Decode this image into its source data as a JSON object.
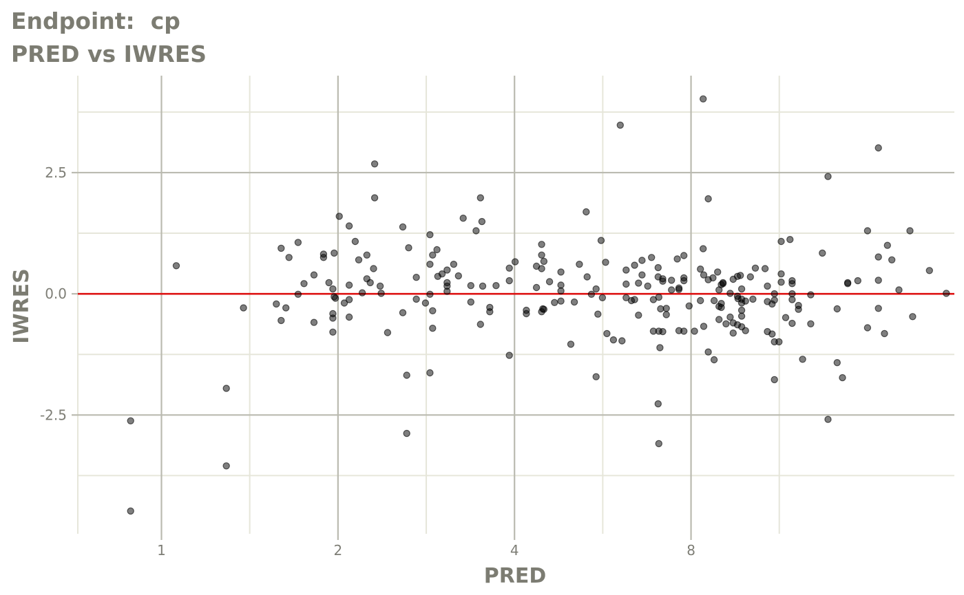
{
  "chart_data": {
    "type": "scatter",
    "title": "Endpoint:  cp",
    "subtitle": "PRED vs IWRES",
    "xlabel": "PRED",
    "ylabel": "IWRES",
    "x_scale": "log2",
    "xlim": [
      0.72,
      22.5
    ],
    "ylim": [
      -4.95,
      4.5
    ],
    "x_ticks": [
      1,
      2,
      4,
      8
    ],
    "x_tick_labels": [
      "1",
      "2",
      "4",
      "8"
    ],
    "y_ticks": [
      -2.5,
      0,
      2.5
    ],
    "y_tick_labels": [
      "-2.5",
      "0.0",
      "2.5"
    ],
    "reference_line": {
      "y": 0,
      "color": "#dd1111"
    },
    "grid": true,
    "colors": {
      "point": "#000000",
      "grid_major": "#babab0",
      "grid_minor": "#e6e6da"
    },
    "points": [
      [
        0.886,
        -4.48
      ],
      [
        0.886,
        -2.62
      ],
      [
        1.06,
        0.58
      ],
      [
        1.29,
        -1.95
      ],
      [
        1.29,
        -3.55
      ],
      [
        1.38,
        -0.29
      ],
      [
        1.57,
        -0.21
      ],
      [
        1.6,
        0.94
      ],
      [
        1.6,
        -0.55
      ],
      [
        1.63,
        -0.29
      ],
      [
        1.65,
        0.75
      ],
      [
        1.71,
        1.06
      ],
      [
        1.71,
        -0.01
      ],
      [
        1.75,
        0.21
      ],
      [
        1.82,
        0.39
      ],
      [
        1.82,
        -0.59
      ],
      [
        1.89,
        0.82
      ],
      [
        1.89,
        0.75
      ],
      [
        1.93,
        0.23
      ],
      [
        1.96,
        0.1
      ],
      [
        1.96,
        -0.41
      ],
      [
        1.96,
        -0.5
      ],
      [
        1.96,
        -0.79
      ],
      [
        1.97,
        -0.06
      ],
      [
        1.98,
        -0.09
      ],
      [
        1.97,
        0.84
      ],
      [
        2.01,
        1.6
      ],
      [
        2.05,
        -0.19
      ],
      [
        2.09,
        1.4
      ],
      [
        2.09,
        0.18
      ],
      [
        2.09,
        -0.12
      ],
      [
        2.09,
        -0.48
      ],
      [
        2.14,
        1.08
      ],
      [
        2.17,
        0.7
      ],
      [
        2.2,
        0.02
      ],
      [
        2.24,
        0.8
      ],
      [
        2.24,
        0.31
      ],
      [
        2.27,
        0.23
      ],
      [
        2.3,
        0.52
      ],
      [
        2.31,
        2.68
      ],
      [
        2.31,
        1.98
      ],
      [
        2.36,
        0.16
      ],
      [
        2.37,
        0.01
      ],
      [
        2.43,
        -0.8
      ],
      [
        2.58,
        1.38
      ],
      [
        2.58,
        -0.39
      ],
      [
        2.62,
        -1.68
      ],
      [
        2.62,
        -2.88
      ],
      [
        2.64,
        0.95
      ],
      [
        2.72,
        0.34
      ],
      [
        2.72,
        -0.11
      ],
      [
        2.82,
        -0.19
      ],
      [
        2.87,
        1.22
      ],
      [
        2.87,
        0.61
      ],
      [
        2.87,
        -0.01
      ],
      [
        2.9,
        0.8
      ],
      [
        2.9,
        -0.35
      ],
      [
        2.9,
        -0.71
      ],
      [
        2.87,
        -1.63
      ],
      [
        2.95,
        0.91
      ],
      [
        2.96,
        0.36
      ],
      [
        3.01,
        0.41
      ],
      [
        3.07,
        0.49
      ],
      [
        3.07,
        0.23
      ],
      [
        3.07,
        0.16
      ],
      [
        3.07,
        0.05
      ],
      [
        3.15,
        0.61
      ],
      [
        3.21,
        0.37
      ],
      [
        3.27,
        1.56
      ],
      [
        3.37,
        0.17
      ],
      [
        3.37,
        -0.17
      ],
      [
        3.44,
        1.3
      ],
      [
        3.5,
        1.98
      ],
      [
        3.5,
        -0.63
      ],
      [
        3.52,
        1.49
      ],
      [
        3.53,
        0.16
      ],
      [
        3.63,
        -0.28
      ],
      [
        3.63,
        -0.37
      ],
      [
        3.72,
        0.17
      ],
      [
        3.92,
        0.53
      ],
      [
        3.92,
        0.27
      ],
      [
        3.92,
        -1.27
      ],
      [
        4.01,
        0.66
      ],
      [
        4.19,
        -0.34
      ],
      [
        4.19,
        -0.41
      ],
      [
        4.36,
        0.57
      ],
      [
        4.36,
        0.13
      ],
      [
        4.45,
        1.02
      ],
      [
        4.45,
        0.8
      ],
      [
        4.45,
        0.52
      ],
      [
        4.45,
        -0.37
      ],
      [
        4.47,
        -0.31
      ],
      [
        4.49,
        0.67
      ],
      [
        4.49,
        -0.32
      ],
      [
        4.59,
        0.25
      ],
      [
        4.68,
        -0.18
      ],
      [
        4.8,
        0.45
      ],
      [
        4.8,
        0.18
      ],
      [
        4.8,
        0.06
      ],
      [
        4.8,
        -0.15
      ],
      [
        4.99,
        -1.04
      ],
      [
        5.06,
        -0.17
      ],
      [
        5.16,
        0.61
      ],
      [
        5.3,
        1.69
      ],
      [
        5.32,
        0.35
      ],
      [
        5.41,
        -0.01
      ],
      [
        5.51,
        0.1
      ],
      [
        5.55,
        -0.42
      ],
      [
        5.51,
        -1.71
      ],
      [
        5.62,
        1.1
      ],
      [
        5.65,
        -0.08
      ],
      [
        5.72,
        0.65
      ],
      [
        5.75,
        -0.82
      ],
      [
        5.9,
        -0.95
      ],
      [
        6.1,
        -0.97
      ],
      [
        6.06,
        3.48
      ],
      [
        6.2,
        0.49
      ],
      [
        6.2,
        0.2
      ],
      [
        6.2,
        -0.08
      ],
      [
        6.33,
        -0.14
      ],
      [
        6.41,
        0.59
      ],
      [
        6.41,
        -0.12
      ],
      [
        6.51,
        0.22
      ],
      [
        6.51,
        -0.44
      ],
      [
        6.6,
        0.69
      ],
      [
        6.6,
        0.39
      ],
      [
        6.75,
        0.16
      ],
      [
        6.85,
        0.75
      ],
      [
        6.9,
        -0.12
      ],
      [
        6.9,
        -0.77
      ],
      [
        7.03,
        0.54
      ],
      [
        7.03,
        0.35
      ],
      [
        7.05,
        -0.07
      ],
      [
        7.05,
        -0.77
      ],
      [
        7.03,
        -2.27
      ],
      [
        7.08,
        -1.11
      ],
      [
        7.1,
        -0.31
      ],
      [
        7.16,
        0.31
      ],
      [
        7.16,
        -0.78
      ],
      [
        7.16,
        0.26
      ],
      [
        7.05,
        -3.09
      ],
      [
        7.26,
        -0.3
      ],
      [
        7.26,
        -0.43
      ],
      [
        7.41,
        0.28
      ],
      [
        7.41,
        0.08
      ],
      [
        7.58,
        0.72
      ],
      [
        7.63,
        0.12
      ],
      [
        7.63,
        -0.76
      ],
      [
        7.63,
        0.09
      ],
      [
        7.78,
        0.79
      ],
      [
        7.78,
        0.33
      ],
      [
        7.78,
        0.27
      ],
      [
        7.78,
        -0.77
      ],
      [
        7.94,
        -0.25
      ],
      [
        8.11,
        -0.77
      ],
      [
        8.3,
        0.51
      ],
      [
        8.3,
        -0.14
      ],
      [
        8.39,
        4.02
      ],
      [
        8.39,
        0.93
      ],
      [
        8.41,
        0.39
      ],
      [
        8.41,
        -0.67
      ],
      [
        8.56,
        1.96
      ],
      [
        8.56,
        -1.2
      ],
      [
        8.56,
        0.29
      ],
      [
        8.72,
        0.33
      ],
      [
        8.76,
        -0.14
      ],
      [
        8.76,
        -1.36
      ],
      [
        8.88,
        0.45
      ],
      [
        8.93,
        -0.26
      ],
      [
        8.93,
        -0.53
      ],
      [
        8.93,
        0.08
      ],
      [
        9.01,
        0.19
      ],
      [
        9.01,
        -0.28
      ],
      [
        9.01,
        -0.2
      ],
      [
        9.07,
        0.23
      ],
      [
        9.07,
        0.21
      ],
      [
        9.18,
        -0.62
      ],
      [
        9.33,
        0.01
      ],
      [
        9.33,
        -0.48
      ],
      [
        9.44,
        0.3
      ],
      [
        9.44,
        -0.6
      ],
      [
        9.44,
        -0.81
      ],
      [
        9.6,
        0.36
      ],
      [
        9.6,
        -0.64
      ],
      [
        9.6,
        -0.05
      ],
      [
        9.62,
        -0.1
      ],
      [
        9.71,
        0.38
      ],
      [
        9.76,
        0.1
      ],
      [
        9.76,
        -0.11
      ],
      [
        9.76,
        -0.19
      ],
      [
        9.76,
        -0.34
      ],
      [
        9.76,
        -0.46
      ],
      [
        9.76,
        -0.68
      ],
      [
        9.91,
        -0.15
      ],
      [
        9.91,
        -0.76
      ],
      [
        10.1,
        0.35
      ],
      [
        10.2,
        -0.11
      ],
      [
        10.3,
        0.53
      ],
      [
        10.7,
        0.52
      ],
      [
        10.8,
        0.16
      ],
      [
        10.8,
        -0.16
      ],
      [
        10.8,
        -0.78
      ],
      [
        11.0,
        -0.83
      ],
      [
        11.0,
        -0.21
      ],
      [
        11.1,
        -0.13
      ],
      [
        11.1,
        -0.99
      ],
      [
        11.1,
        -1.77
      ],
      [
        11.1,
        0.0
      ],
      [
        11.3,
        -0.99
      ],
      [
        11.4,
        1.08
      ],
      [
        11.4,
        0.41
      ],
      [
        11.4,
        0.24
      ],
      [
        11.6,
        -0.49
      ],
      [
        11.8,
        1.12
      ],
      [
        11.9,
        0.27
      ],
      [
        11.9,
        0.21
      ],
      [
        11.9,
        0.0
      ],
      [
        11.9,
        -0.12
      ],
      [
        11.9,
        -0.61
      ],
      [
        12.2,
        -0.24
      ],
      [
        12.2,
        -0.32
      ],
      [
        12.4,
        -1.35
      ],
      [
        12.8,
        -0.62
      ],
      [
        12.8,
        -0.02
      ],
      [
        13.4,
        0.84
      ],
      [
        13.7,
        2.42
      ],
      [
        13.7,
        -2.59
      ],
      [
        14.2,
        -1.42
      ],
      [
        14.2,
        -0.31
      ],
      [
        14.5,
        -1.73
      ],
      [
        14.8,
        0.23
      ],
      [
        14.8,
        0.21
      ],
      [
        15.4,
        0.27
      ],
      [
        16.0,
        1.3
      ],
      [
        16.0,
        -0.7
      ],
      [
        16.7,
        3.01
      ],
      [
        16.7,
        0.76
      ],
      [
        16.7,
        0.28
      ],
      [
        16.7,
        -0.3
      ],
      [
        17.1,
        -0.82
      ],
      [
        17.3,
        1.0
      ],
      [
        17.6,
        0.7
      ],
      [
        18.1,
        0.08
      ],
      [
        18.9,
        1.3
      ],
      [
        19.1,
        -0.47
      ],
      [
        20.4,
        0.48
      ],
      [
        21.8,
        0.01
      ]
    ]
  }
}
